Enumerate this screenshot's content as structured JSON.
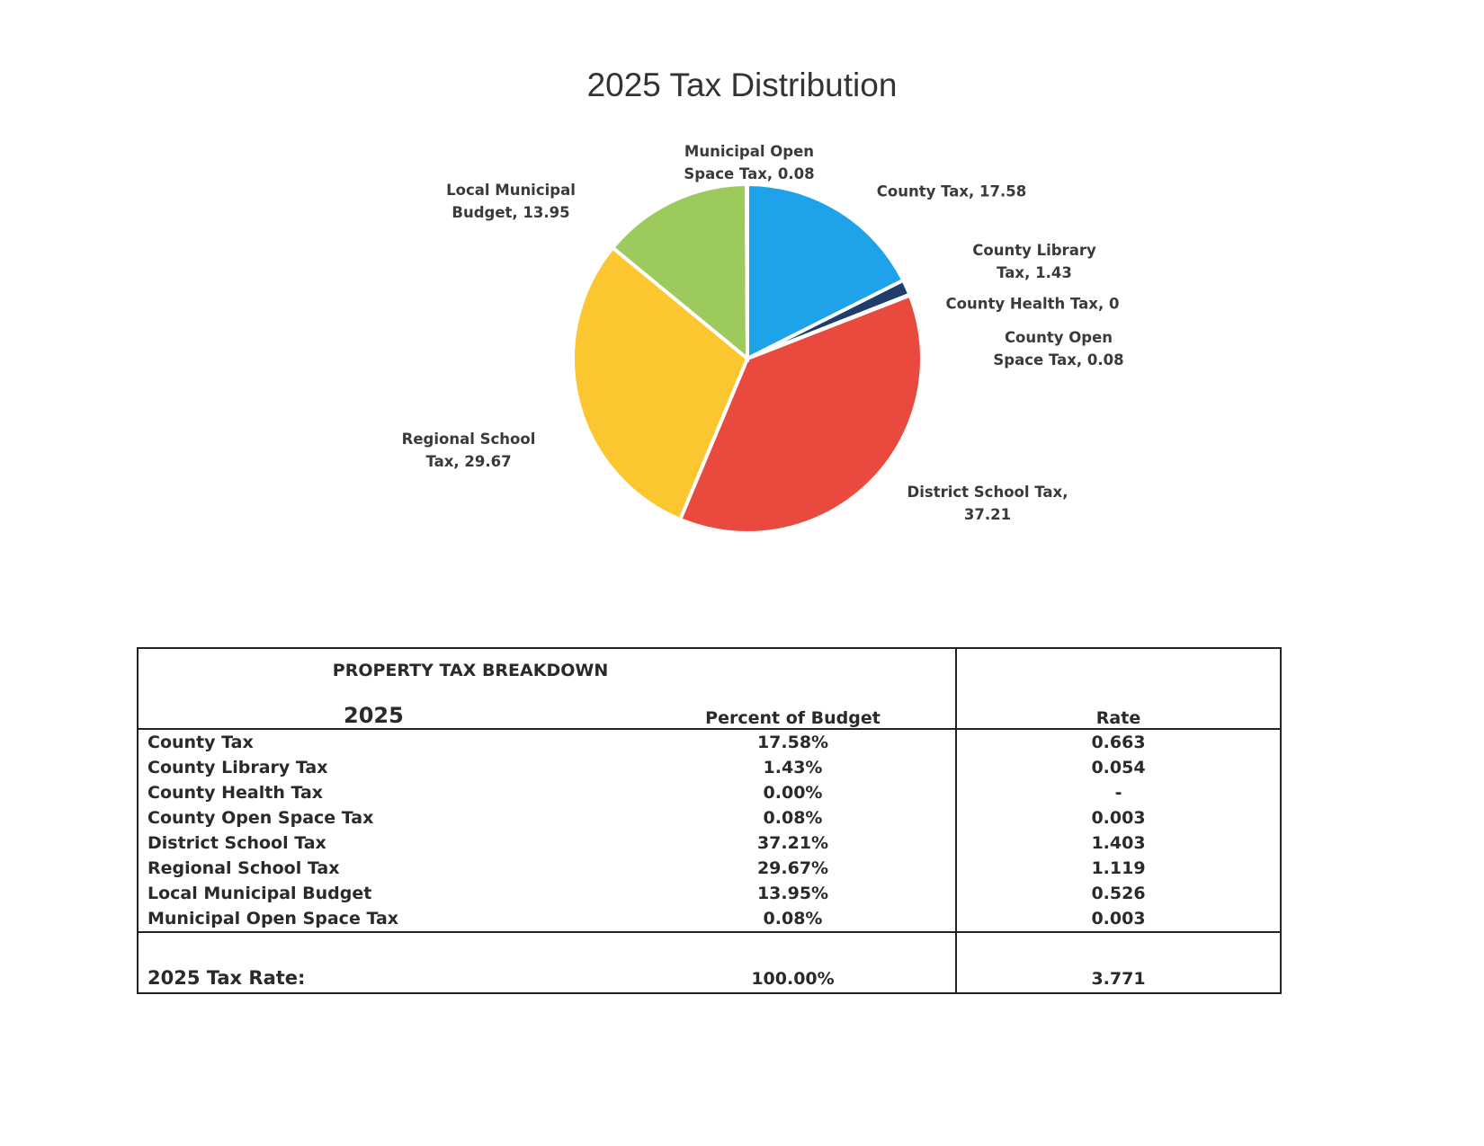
{
  "chart_data": {
    "type": "pie",
    "title": "2025 Tax Distribution",
    "categories": [
      "County Tax",
      "County Library Tax",
      "County Health Tax",
      "County Open Space Tax",
      "District School Tax",
      "Regional School Tax",
      "Local Municipal Budget",
      "Municipal Open Space Tax"
    ],
    "values": [
      17.58,
      1.43,
      0,
      0.08,
      37.21,
      29.67,
      13.95,
      0.08
    ],
    "colors": [
      "#1ea3ea",
      "#1f3c6b",
      "#7a8a9a",
      "#8e6fb0",
      "#ea4a3e",
      "#fcc630",
      "#9dca5c",
      "#4a7fc0"
    ]
  },
  "table": {
    "title": "PROPERTY TAX BREAKDOWN",
    "year": "2025",
    "headers": [
      "Percent of Budget",
      "Rate"
    ],
    "rows": [
      [
        "County Tax",
        "17.58%",
        "0.663"
      ],
      [
        "County Library Tax",
        "1.43%",
        "0.054"
      ],
      [
        "County Health Tax",
        "0.00%",
        "-"
      ],
      [
        "County Open Space Tax",
        "0.08%",
        "0.003"
      ],
      [
        "District School Tax",
        "37.21%",
        "1.403"
      ],
      [
        "Regional School Tax",
        "29.67%",
        "1.119"
      ],
      [
        "Local Municipal Budget",
        "13.95%",
        "0.526"
      ],
      [
        "Municipal Open Space Tax",
        "0.08%",
        "0.003"
      ]
    ],
    "total": [
      "2025 Tax Rate:",
      "100.00%",
      "3.771"
    ]
  }
}
